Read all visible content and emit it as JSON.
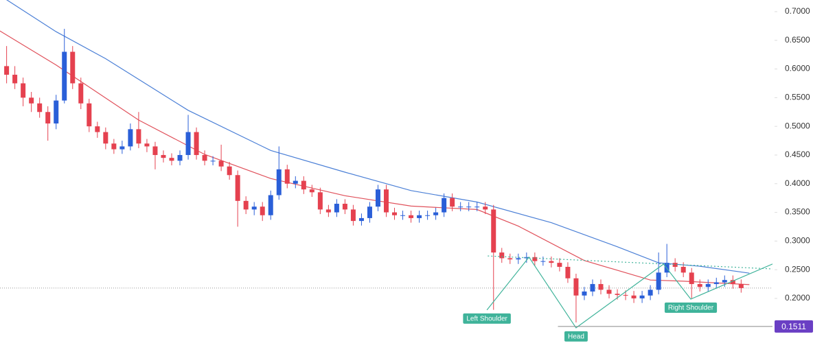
{
  "chart_data": {
    "type": "candlestick",
    "up_color": "#2a5fd8",
    "down_color": "#e5414f",
    "xlim": [
      -0.8,
      92.8
    ],
    "ylim": [
      0.1222,
      0.7203
    ],
    "yticks": [
      {
        "value": 0.2,
        "label": "0.2000"
      },
      {
        "value": 0.25,
        "label": "0.2500"
      },
      {
        "value": 0.3,
        "label": "0.3000"
      },
      {
        "value": 0.35,
        "label": "0.3500"
      },
      {
        "value": 0.4,
        "label": "0.4000"
      },
      {
        "value": 0.45,
        "label": "0.4500"
      },
      {
        "value": 0.5,
        "label": "0.5000"
      },
      {
        "value": 0.55,
        "label": "0.5500"
      },
      {
        "value": 0.6,
        "label": "0.6000"
      },
      {
        "value": 0.65,
        "label": "0.6500"
      },
      {
        "value": 0.7,
        "label": "0.7000"
      }
    ],
    "ohlc": [
      [
        0.605,
        0.64,
        0.575,
        0.59
      ],
      [
        0.59,
        0.605,
        0.565,
        0.575
      ],
      [
        0.575,
        0.585,
        0.535,
        0.55
      ],
      [
        0.55,
        0.56,
        0.525,
        0.54
      ],
      [
        0.54,
        0.55,
        0.515,
        0.525
      ],
      [
        0.525,
        0.535,
        0.475,
        0.505
      ],
      [
        0.505,
        0.555,
        0.495,
        0.545
      ],
      [
        0.545,
        0.67,
        0.54,
        0.63
      ],
      [
        0.63,
        0.64,
        0.565,
        0.575
      ],
      [
        0.575,
        0.585,
        0.53,
        0.54
      ],
      [
        0.54,
        0.548,
        0.49,
        0.5
      ],
      [
        0.5,
        0.508,
        0.48,
        0.49
      ],
      [
        0.49,
        0.498,
        0.46,
        0.47
      ],
      [
        0.47,
        0.478,
        0.452,
        0.46
      ],
      [
        0.46,
        0.475,
        0.452,
        0.465
      ],
      [
        0.465,
        0.505,
        0.458,
        0.495
      ],
      [
        0.495,
        0.525,
        0.462,
        0.47
      ],
      [
        0.47,
        0.478,
        0.455,
        0.465
      ],
      [
        0.465,
        0.473,
        0.425,
        0.45
      ],
      [
        0.45,
        0.458,
        0.437,
        0.445
      ],
      [
        0.445,
        0.453,
        0.432,
        0.44
      ],
      [
        0.44,
        0.458,
        0.432,
        0.45
      ],
      [
        0.45,
        0.52,
        0.442,
        0.49
      ],
      [
        0.49,
        0.498,
        0.442,
        0.45
      ],
      [
        0.45,
        0.458,
        0.432,
        0.44
      ],
      [
        0.44,
        0.448,
        0.432,
        0.44
      ],
      [
        0.44,
        0.468,
        0.422,
        0.43
      ],
      [
        0.43,
        0.438,
        0.407,
        0.415
      ],
      [
        0.415,
        0.423,
        0.325,
        0.37
      ],
      [
        0.37,
        0.378,
        0.347,
        0.355
      ],
      [
        0.355,
        0.368,
        0.345,
        0.36
      ],
      [
        0.36,
        0.368,
        0.335,
        0.345
      ],
      [
        0.345,
        0.388,
        0.337,
        0.38
      ],
      [
        0.38,
        0.465,
        0.372,
        0.425
      ],
      [
        0.425,
        0.433,
        0.392,
        0.4
      ],
      [
        0.4,
        0.413,
        0.392,
        0.405
      ],
      [
        0.405,
        0.413,
        0.382,
        0.39
      ],
      [
        0.39,
        0.398,
        0.377,
        0.385
      ],
      [
        0.385,
        0.393,
        0.347,
        0.355
      ],
      [
        0.355,
        0.363,
        0.342,
        0.35
      ],
      [
        0.35,
        0.373,
        0.342,
        0.365
      ],
      [
        0.365,
        0.373,
        0.347,
        0.355
      ],
      [
        0.355,
        0.363,
        0.327,
        0.335
      ],
      [
        0.335,
        0.348,
        0.327,
        0.34
      ],
      [
        0.34,
        0.368,
        0.332,
        0.36
      ],
      [
        0.36,
        0.398,
        0.352,
        0.39
      ],
      [
        0.39,
        0.398,
        0.342,
        0.35
      ],
      [
        0.35,
        0.358,
        0.337,
        0.345
      ],
      [
        0.345,
        0.353,
        0.337,
        0.345
      ],
      [
        0.345,
        0.353,
        0.332,
        0.34
      ],
      [
        0.34,
        0.353,
        0.332,
        0.345
      ],
      [
        0.345,
        0.353,
        0.337,
        0.345
      ],
      [
        0.345,
        0.358,
        0.337,
        0.35
      ],
      [
        0.35,
        0.383,
        0.342,
        0.375
      ],
      [
        0.375,
        0.383,
        0.352,
        0.36
      ],
      [
        0.36,
        0.368,
        0.352,
        0.36
      ],
      [
        0.36,
        0.368,
        0.352,
        0.36
      ],
      [
        0.36,
        0.368,
        0.352,
        0.36
      ],
      [
        0.36,
        0.368,
        0.347,
        0.355
      ],
      [
        0.355,
        0.363,
        0.18,
        0.28
      ],
      [
        0.28,
        0.288,
        0.262,
        0.27
      ],
      [
        0.27,
        0.278,
        0.26,
        0.268
      ],
      [
        0.268,
        0.278,
        0.26,
        0.27
      ],
      [
        0.27,
        0.28,
        0.262,
        0.272
      ],
      [
        0.272,
        0.28,
        0.257,
        0.265
      ],
      [
        0.265,
        0.273,
        0.257,
        0.265
      ],
      [
        0.265,
        0.273,
        0.254,
        0.262
      ],
      [
        0.262,
        0.27,
        0.247,
        0.255
      ],
      [
        0.255,
        0.263,
        0.227,
        0.235
      ],
      [
        0.235,
        0.243,
        0.158,
        0.205
      ],
      [
        0.205,
        0.22,
        0.197,
        0.212
      ],
      [
        0.212,
        0.233,
        0.204,
        0.225
      ],
      [
        0.225,
        0.233,
        0.207,
        0.215
      ],
      [
        0.215,
        0.223,
        0.2,
        0.208
      ],
      [
        0.208,
        0.216,
        0.198,
        0.206
      ],
      [
        0.206,
        0.214,
        0.197,
        0.205
      ],
      [
        0.205,
        0.213,
        0.192,
        0.2
      ],
      [
        0.2,
        0.213,
        0.192,
        0.205
      ],
      [
        0.205,
        0.223,
        0.197,
        0.215
      ],
      [
        0.215,
        0.28,
        0.207,
        0.245
      ],
      [
        0.245,
        0.295,
        0.237,
        0.262
      ],
      [
        0.262,
        0.27,
        0.247,
        0.255
      ],
      [
        0.255,
        0.263,
        0.237,
        0.245
      ],
      [
        0.245,
        0.253,
        0.2,
        0.225
      ],
      [
        0.225,
        0.233,
        0.212,
        0.22
      ],
      [
        0.22,
        0.233,
        0.212,
        0.225
      ],
      [
        0.225,
        0.236,
        0.217,
        0.228
      ],
      [
        0.228,
        0.24,
        0.22,
        0.232
      ],
      [
        0.232,
        0.24,
        0.217,
        0.225
      ],
      [
        0.225,
        0.233,
        0.21,
        0.218
      ]
    ],
    "lines": [
      {
        "color": "#4a7fd6",
        "x": [
          -1,
          6,
          12,
          22,
          32,
          41,
          49,
          57,
          66,
          74,
          79,
          84,
          90
        ],
        "values": [
          0.73,
          0.665,
          0.618,
          0.528,
          0.458,
          0.42,
          0.388,
          0.368,
          0.332,
          0.29,
          0.262,
          0.256,
          0.244
        ]
      },
      {
        "color": "#e0505a",
        "x": [
          -1,
          6,
          16,
          24,
          32,
          41,
          49,
          57,
          62,
          70,
          78,
          82,
          90
        ],
        "values": [
          0.668,
          0.607,
          0.511,
          0.451,
          0.409,
          0.379,
          0.361,
          0.355,
          0.326,
          0.266,
          0.232,
          0.23,
          0.224
        ]
      }
    ],
    "last_price": 0.218,
    "pattern": {
      "color": "#3fb39a",
      "x": [
        58.2,
        63.3,
        69,
        79.6,
        82.9,
        93.75
      ],
      "values": [
        0.1797,
        0.2718,
        0.1486,
        0.2598,
        0.1988,
        0.2658
      ]
    },
    "neckline": {
      "x": [
        58.3,
        93.3
      ],
      "values": [
        0.274,
        0.251
      ]
    },
    "head_level": {
      "value": 0.1511,
      "start_x": 66.8,
      "color": "#6a3fc4"
    },
    "annotations": [
      "Left Shoulder",
      "Head",
      "Right Shoulder"
    ]
  }
}
